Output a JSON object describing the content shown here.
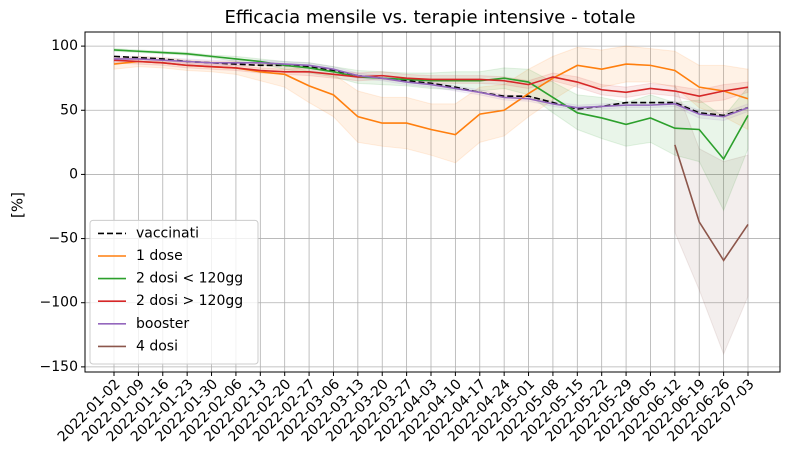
{
  "chart_data": {
    "type": "line",
    "title": "Efficacia mensile vs. terapie intensive - totale",
    "ylabel": "[%]",
    "categories": [
      "2022-01-02",
      "2022-01-09",
      "2022-01-16",
      "2022-01-23",
      "2022-01-30",
      "2022-02-06",
      "2022-02-13",
      "2022-02-20",
      "2022-02-27",
      "2022-03-06",
      "2022-03-13",
      "2022-03-20",
      "2022-03-27",
      "2022-04-03",
      "2022-04-10",
      "2022-04-17",
      "2022-04-24",
      "2022-05-01",
      "2022-05-08",
      "2022-05-15",
      "2022-05-22",
      "2022-05-29",
      "2022-06-05",
      "2022-06-12",
      "2022-06-19",
      "2022-06-26",
      "2022-07-03"
    ],
    "ylim": [
      -154,
      111
    ],
    "yticks": [
      {
        "value": -150,
        "label": "−150"
      },
      {
        "value": -100,
        "label": "−100"
      },
      {
        "value": -50,
        "label": "−50"
      },
      0,
      50,
      100
    ],
    "grid": true,
    "legend": "lower left",
    "series": [
      {
        "name": "vaccinati",
        "color": "#000000",
        "dashed": true,
        "values": [
          92,
          91,
          90,
          88,
          87,
          86,
          85,
          85,
          84,
          81,
          77,
          75,
          73,
          71,
          68,
          64,
          61,
          61,
          56,
          51,
          53,
          56,
          56,
          56,
          48,
          46,
          52
        ]
      },
      {
        "name": "1 dose",
        "color": "#ff7f0e",
        "values": [
          86,
          88,
          87,
          85,
          84,
          83,
          80,
          78,
          69,
          62,
          45,
          40,
          40,
          35,
          31,
          47,
          50,
          63,
          75,
          85,
          82,
          86,
          85,
          81,
          68,
          65,
          59
        ],
        "lower": [
          82,
          84,
          83,
          81,
          80,
          78,
          73,
          68,
          56,
          45,
          25,
          22,
          20,
          15,
          9,
          25,
          30,
          45,
          58,
          70,
          68,
          72,
          72,
          68,
          52,
          45,
          35
        ],
        "upper": [
          90,
          92,
          91,
          89,
          88,
          88,
          86,
          86,
          80,
          78,
          65,
          60,
          60,
          55,
          55,
          68,
          70,
          82,
          92,
          99,
          97,
          100,
          98,
          96,
          85,
          85,
          82
        ]
      },
      {
        "name": "2 dosi < 120gg",
        "color": "#2ca02c",
        "values": [
          97,
          96,
          95,
          94,
          92,
          90,
          88,
          85,
          83,
          80,
          76,
          75,
          74,
          73,
          73,
          73,
          75,
          72,
          60,
          48,
          44,
          39,
          44,
          36,
          35,
          12,
          46
        ],
        "lower": [
          96,
          95,
          94,
          93,
          91,
          88,
          86,
          82,
          79,
          76,
          71,
          70,
          69,
          67,
          66,
          65,
          67,
          62,
          48,
          35,
          28,
          22,
          25,
          15,
          10,
          -28,
          20
        ],
        "upper": [
          98,
          97,
          96,
          95,
          93,
          92,
          90,
          88,
          87,
          84,
          81,
          80,
          79,
          79,
          80,
          80,
          83,
          82,
          72,
          62,
          60,
          56,
          62,
          56,
          58,
          45,
          68
        ]
      },
      {
        "name": "2 dosi > 120gg",
        "color": "#d62728",
        "values": [
          89,
          88,
          87,
          85,
          84,
          83,
          81,
          80,
          80,
          78,
          76,
          77,
          75,
          74,
          74,
          74,
          73,
          70,
          76,
          72,
          66,
          64,
          67,
          65,
          61,
          65,
          68
        ],
        "lower": [
          87,
          86,
          85,
          83,
          82,
          81,
          79,
          78,
          77,
          75,
          73,
          74,
          72,
          71,
          71,
          71,
          70,
          67,
          73,
          68,
          62,
          60,
          63,
          61,
          56,
          58,
          64
        ],
        "upper": [
          91,
          90,
          89,
          87,
          86,
          85,
          83,
          82,
          83,
          81,
          79,
          80,
          78,
          77,
          77,
          77,
          76,
          73,
          79,
          76,
          70,
          68,
          71,
          69,
          66,
          70,
          72
        ]
      },
      {
        "name": "booster",
        "color": "#9467bd",
        "values": [
          90,
          90,
          89,
          88,
          87,
          87,
          87,
          86,
          85,
          82,
          77,
          75,
          72,
          70,
          67,
          64,
          60,
          59,
          55,
          52,
          53,
          54,
          54,
          55,
          47,
          45,
          52
        ],
        "lower": [
          88,
          88,
          87,
          86,
          85,
          85,
          85,
          84,
          83,
          80,
          75,
          73,
          70,
          68,
          65,
          62,
          58,
          57,
          53,
          50,
          51,
          52,
          52,
          53,
          44,
          42,
          49
        ],
        "upper": [
          92,
          92,
          91,
          90,
          89,
          89,
          89,
          88,
          87,
          84,
          79,
          77,
          74,
          72,
          69,
          66,
          62,
          61,
          57,
          54,
          55,
          56,
          56,
          57,
          50,
          48,
          55
        ]
      },
      {
        "name": "4 dosi",
        "color": "#8c564b",
        "values": [
          null,
          null,
          null,
          null,
          null,
          null,
          null,
          null,
          null,
          null,
          null,
          null,
          null,
          null,
          null,
          null,
          null,
          null,
          null,
          null,
          null,
          null,
          null,
          23,
          -37,
          -67,
          -39
        ],
        "lower": [
          null,
          null,
          null,
          null,
          null,
          null,
          null,
          null,
          null,
          null,
          null,
          null,
          null,
          null,
          null,
          null,
          null,
          null,
          null,
          null,
          null,
          null,
          null,
          -45,
          -90,
          -140,
          -95
        ],
        "upper": [
          null,
          null,
          null,
          null,
          null,
          null,
          null,
          null,
          null,
          null,
          null,
          null,
          null,
          null,
          null,
          null,
          null,
          null,
          null,
          null,
          null,
          null,
          null,
          70,
          20,
          10,
          15
        ]
      }
    ]
  }
}
